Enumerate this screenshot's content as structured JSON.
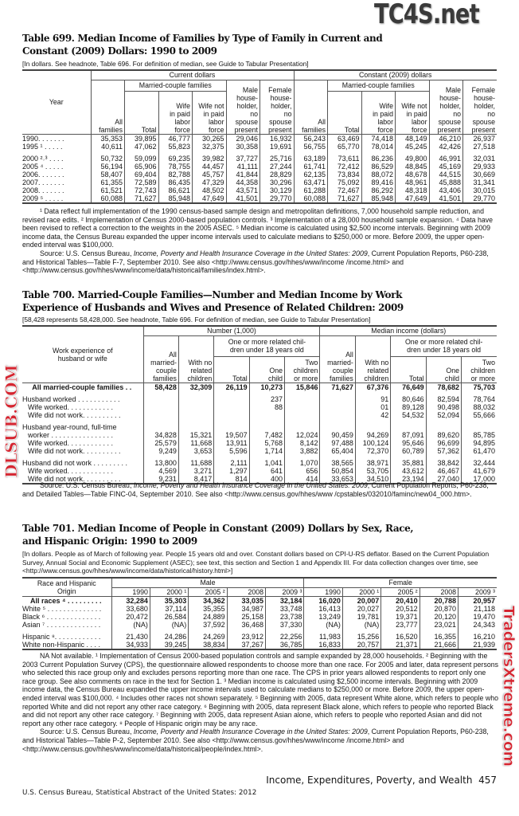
{
  "watermarks": {
    "top": "TC4S.net",
    "middle": "DLSUB.COM",
    "bottom": "TradersXtreme.com"
  },
  "t699": {
    "title1": "Table 699. Median Income of Families by Type of Family in Current and",
    "title2": "Constant (2009) Dollars: 1990 to 2009",
    "headnote": "[In dollars. See headnote, Table 696. For definition of median, see Guide to Tabular Presentation]",
    "h": {
      "year": "Year",
      "current": "Current dollars",
      "constant": "Constant (2009) dollars",
      "all": "All\nfamilies",
      "married": "Married-couple families",
      "male": "Male\nhouse-\nholder,\nno\nspouse\npresent",
      "female": "Female\nhouse-\nholder,\nno\nspouse\npresent",
      "total": "Total",
      "wife_in": "Wife\nin paid\nlabor\nforce",
      "wife_not": "Wife not\nin paid\nlabor\nforce"
    },
    "rows": [
      {
        "label": "1990. . . . . . .",
        "values": [
          "35,353",
          "39,895",
          "46,777",
          "30,265",
          "29,046",
          "16,932",
          "56,243",
          "63,469",
          "74,418",
          "48,149",
          "46,210",
          "26,937"
        ]
      },
      {
        "label": "1995 ¹  . . . . .",
        "values": [
          "40,611",
          "47,062",
          "55,823",
          "32,375",
          "30,358",
          "19,691",
          "56,755",
          "65,770",
          "78,014",
          "45,245",
          "42,426",
          "27,518"
        ]
      },
      {
        "gap": true
      },
      {
        "label": "2000 ²˒³ . . . .",
        "values": [
          "50,732",
          "59,099",
          "69,235",
          "39,982",
          "37,727",
          "25,716",
          "63,189",
          "73,611",
          "86,236",
          "49,800",
          "46,991",
          "32,031"
        ]
      },
      {
        "label": "2005 ⁴ . . . . .",
        "values": [
          "56,194",
          "65,906",
          "78,755",
          "44,457",
          "41,111",
          "27,244",
          "61,741",
          "72,412",
          "86,529",
          "48,845",
          "45,169",
          "29,933"
        ]
      },
      {
        "label": "2006. . . . . . .",
        "values": [
          "58,407",
          "69,404",
          "82,788",
          "45,757",
          "41,844",
          "28,829",
          "62,135",
          "73,834",
          "88,072",
          "48,678",
          "44,515",
          "30,669"
        ]
      },
      {
        "label": "2007. . . . . . .",
        "values": [
          "61,355",
          "72,589",
          "86,435",
          "47,329",
          "44,358",
          "30,296",
          "63,471",
          "75,092",
          "89,416",
          "48,961",
          "45,888",
          "31,341"
        ]
      },
      {
        "label": "2008. . . . . . .",
        "values": [
          "61,521",
          "72,743",
          "86,621",
          "48,502",
          "43,571",
          "30,129",
          "61,288",
          "72,467",
          "86,292",
          "48,318",
          "43,406",
          "30,015"
        ]
      },
      {
        "label": "2009 ⁵ . . . . .",
        "values": [
          "60,088",
          "71,627",
          "85,948",
          "47,649",
          "41,501",
          "29,770",
          "60,088",
          "71,627",
          "85,948",
          "47,649",
          "41,501",
          "29,770"
        ]
      }
    ],
    "footnotes": "¹ Data reflect full implementation of the 1990 census-based sample design and metropolitan definitions, 7,000 household sample reduction, and revised race edits. ² Implementation of Census 2000-based population controls. ³ Implementation of a 28,000 household sample expansion. ⁴ Data have been revised to reflect a correction to the weights in the 2005 ASEC. ⁵ Median income is calculated using $2,500 income intervals. Beginning with 2009 income data, the Census Bureau expanded the upper income intervals used to calculate medians to $250,000 or more. Before 2009, the upper open-ended interval was $100,000.",
    "source_pre": "Source: U.S. Census Bureau, ",
    "source_italic": "Income, Poverty and Health Insurance Coverage in the United States: 2009",
    "source_post": ", Current Population Reports, P60-238, and Historical Tables—Table F-7, September 2010. See also <http://www.census.gov/hhes/www/income /income.html> and <http://www.census.gov/hhes/www/income/data/historical/families/index.html>."
  },
  "t700": {
    "title1": "Table 700. Married-Couple Families—Number and Median Income by Work",
    "title2": "Experience of Husbands and Wives and Presence of Related Children: 2009",
    "headnote": "[58,428 represents 58,428,000. See headnote, Table 696. For definition of median, see Guide to Tabular Presentation]",
    "h": {
      "stub": "Work experience of\nhusband or wife",
      "number": "Number (1,000)",
      "median": "Median income (dollars)",
      "all": "All\nmarried-\ncouple\nfamilies",
      "nochild": "With no\nrelated\nchildren",
      "oneormore": "One or more related chil-\ndren under 18 years old",
      "total": "Total",
      "one": "One\nchild",
      "two": "Two\nchildren\nor more"
    },
    "rows": [
      {
        "label": "All married-couple families . .",
        "bold": true,
        "center": true,
        "values": [
          "58,428",
          "32,309",
          "26,119",
          "10,273",
          "15,846",
          "71,627",
          "67,376",
          "76,649",
          "78,682",
          "75,703"
        ]
      },
      {
        "gap": true
      },
      {
        "label": "Husband worked . . . . . . . . . . .",
        "values": [
          "",
          "",
          "",
          "237",
          "",
          "",
          "91",
          "80,646",
          "82,594",
          "78,764"
        ]
      },
      {
        "label": "Wife worked. . . . . . . . . . . .",
        "indent": true,
        "values": [
          "",
          "",
          "",
          "88",
          "",
          "",
          "01",
          "89,128",
          "90,498",
          "88,032"
        ]
      },
      {
        "label": "Wife did not work. . . . . . . . . .",
        "indent": true,
        "values": [
          "",
          "",
          "",
          "",
          "",
          "",
          "42",
          "54,532",
          "52,094",
          "55,666"
        ]
      },
      {
        "gap": true
      },
      {
        "label": "Husband year-round, full-time",
        "values": [
          "",
          "",
          "",
          "",
          "",
          "",
          "",
          "",
          "",
          ""
        ]
      },
      {
        "label": "worker . . . . . . . . . . . . . . . .",
        "indent": true,
        "values": [
          "34,828",
          "15,321",
          "19,507",
          "7,482",
          "12,024",
          "90,459",
          "94,269",
          "87,091",
          "89,620",
          "85,785"
        ]
      },
      {
        "label": "Wife worked. . . . . . . . . . . .",
        "indent": true,
        "values": [
          "25,579",
          "11,668",
          "13,911",
          "5,768",
          "8,142",
          "97,488",
          "100,124",
          "95,646",
          "96,699",
          "94,895"
        ]
      },
      {
        "label": "Wife did not work. . . . . . . . . .",
        "indent": true,
        "values": [
          "9,249",
          "3,653",
          "5,596",
          "1,714",
          "3,882",
          "65,404",
          "72,370",
          "60,789",
          "57,362",
          "61,470"
        ]
      },
      {
        "gap": true
      },
      {
        "label": "Husband did not work . . . . . . . . .",
        "values": [
          "13,800",
          "11,688",
          "2,111",
          "1,041",
          "1,070",
          "38,565",
          "38,971",
          "35,881",
          "38,842",
          "32,444"
        ]
      },
      {
        "label": "Wife worked. . . . . . . . . . . .",
        "indent": true,
        "values": [
          "4,569",
          "3,271",
          "1,297",
          "641",
          "656",
          "50,854",
          "53,705",
          "43,612",
          "46,467",
          "41,679"
        ]
      },
      {
        "label": "Wife did not work. . . . . . . . . .",
        "indent": true,
        "values": [
          "9,231",
          "8,417",
          "814",
          "400",
          "414",
          "33,653",
          "34,510",
          "23,194",
          "27,040",
          "17,000"
        ]
      }
    ],
    "source_pre": "Source: U.S. Census Bureau, ",
    "source_italic": "Income, Poverty and Health Insurance Coverage in the United States: 2009",
    "source_post": ", Current Population Reports, P60-238, and Detailed Tables—Table FINC-04, September 2010. See also <http://www.census.gov/hhes/www /cpstables/032010/faminc/new04_000.htm>."
  },
  "t701": {
    "title1": "Table 701. Median Income of People in Constant (2009) Dollars by Sex, Race,",
    "title2": "and Hispanic Origin: 1990 to 2009",
    "headnote": "[In dollars. People as of March of following year. People 15 years old and over. Constant dollars based on CPI-U-RS deflator. Based on the Current Population Survey, Annual Social and Economic Supplement (ASEC); see text, this section and Section 1 and Appendix III. For data collection changes over time, see <http://www.census.gov/hhes/www/income/data/historical/history.html>]",
    "h": {
      "stub": "Race and Hispanic\nOrigin",
      "male": "Male",
      "female": "Female",
      "years": [
        "1990",
        "2000 ¹",
        "2005 ²",
        "2008",
        "2009 ³",
        "1990",
        "2000 ¹",
        "2005 ²",
        "2008",
        "2009 ³"
      ]
    },
    "rows": [
      {
        "label": "All races ⁴ . . . . . . . . .",
        "bold": true,
        "center": true,
        "values": [
          "32,284",
          "35,303",
          "34,362",
          "33,035",
          "32,184",
          "16,020",
          "20,007",
          "20,410",
          "20,788",
          "20,957"
        ]
      },
      {
        "label": "White ⁵ . . . . . . . . . . . . . .",
        "values": [
          "33,680",
          "37,114",
          "35,355",
          "34,987",
          "33,748",
          "16,413",
          "20,027",
          "20,512",
          "20,870",
          "21,118"
        ]
      },
      {
        "label": "Black ⁶ . . . . . . . . . . . . . .",
        "values": [
          "20,472",
          "26,584",
          "24,889",
          "25,158",
          "23,738",
          "13,249",
          "19,781",
          "19,371",
          "20,120",
          "19,470"
        ]
      },
      {
        "label": "Asian ⁷ . . . . . . . . . . . . . .",
        "values": [
          "(NA)",
          "(NA)",
          "37,592",
          "36,468",
          "37,330",
          "(NA)",
          "(NA)",
          "23,777",
          "23,021",
          "24,343"
        ]
      },
      {
        "gap": true
      },
      {
        "label": "Hispanic ⁸. . . . . . . . . . . .",
        "values": [
          "21,430",
          "24,286",
          "24,269",
          "23,912",
          "22,256",
          "11,983",
          "15,256",
          "16,520",
          "16,355",
          "16,210"
        ]
      },
      {
        "label": "White non-Hispanic . . . .",
        "values": [
          "34,933",
          "39,245",
          "38,834",
          "37,267",
          "36,785",
          "16,833",
          "20,757",
          "21,371",
          "21,666",
          "21,939"
        ]
      }
    ],
    "footnotes": "NA Not available. ¹ Implementation of Census 2000-based population controls and sample expanded by 28,000 households. ² Beginning with the 2003 Current Population Survey (CPS), the questionnaire allowed respondents to choose more than one race. For 2005 and later, data represent persons who selected this race group only and excludes persons reporting more than one race. The CPS in prior years allowed respondents to report only one race group. See also comments on race in the text for Section 1. ³ Median income is calculated using $2,500 income intervals. Beginning with 2009 income data, the Census Bureau expanded the upper income intervals used to calculate medians to $250,000 or more. Before 2009, the upper open-ended interval was $100,000. ⁴ Includes other races not shown separately. ⁵ Beginning with 2005, data represent White alone, which refers to people who reported White and did not report any other race category. ⁶ Beginning with 2005, data represent Black alone, which refers to people who reported Black and did not report any other race category. ⁷ Beginning with 2005, data represent Asian alone, which refers to people who reported Asian and did not report any other race category. ⁸ People of Hispanic origin may be any race.",
    "source_pre": "Source: U.S. Census Bureau, ",
    "source_italic": "Income, Poverty and Health Insurance Coverage in the United States: 2009",
    "source_post": ", Current Population Reports, P60-238, and Historical Tables—Table P-2, September 2010. See also <http://www.census.gov/hhes/www/income /income.html> and <http://www.census.gov/hhes/www/income/data/historical/people/index.html>."
  },
  "footer": {
    "section": "Income, Expenditures, Poverty, and Wealth",
    "page": "457",
    "publication": "U.S. Census Bureau, Statistical Abstract of the United States: 2012"
  }
}
